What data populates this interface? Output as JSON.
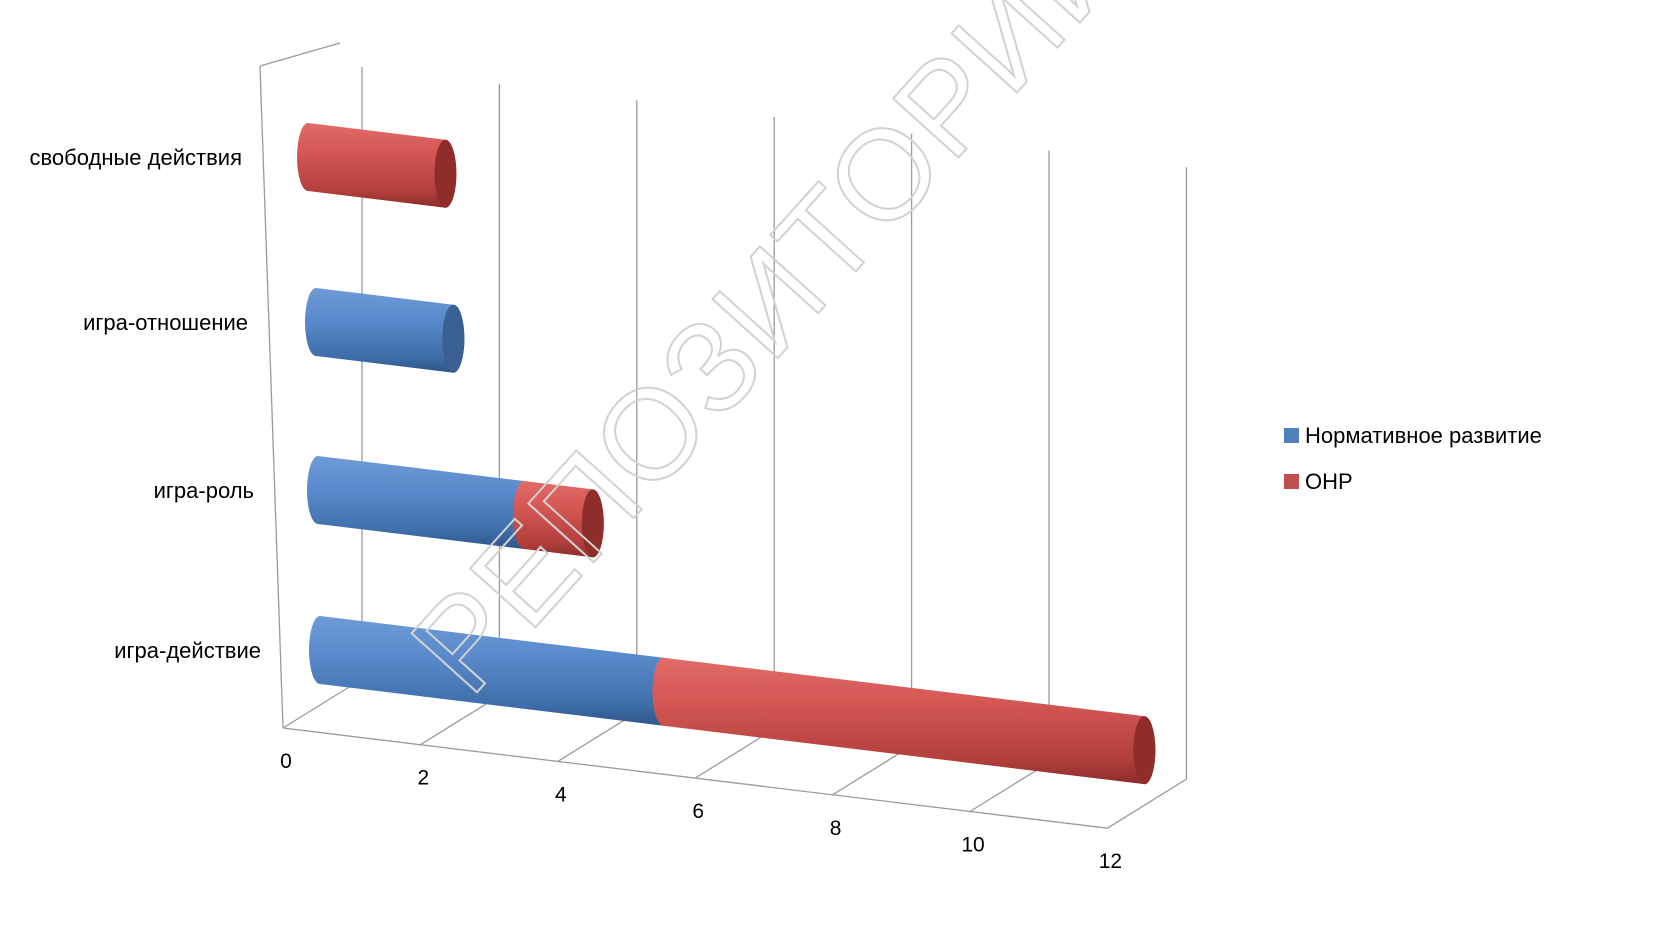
{
  "watermark": "РЕПОЗИТОРИЙ БГПУ",
  "chart_data": {
    "type": "bar",
    "orientation": "horizontal",
    "stacked": true,
    "style": "3d-cylinder",
    "categories": [
      "игра-действие",
      "игра-роль",
      "игра-отношение",
      "свободные действия"
    ],
    "series": [
      {
        "name": "Нормативное развитие",
        "color": "#4f81bd",
        "values": [
          5,
          3,
          2,
          0
        ]
      },
      {
        "name": "ОНР",
        "color": "#c0504d",
        "values": [
          7,
          1,
          0,
          2
        ]
      }
    ],
    "xlim": [
      0,
      12
    ],
    "xticks": [
      0,
      2,
      4,
      6,
      8,
      10,
      12
    ],
    "grid": true,
    "legend_position": "right",
    "title": "",
    "xlabel": "",
    "ylabel": ""
  }
}
